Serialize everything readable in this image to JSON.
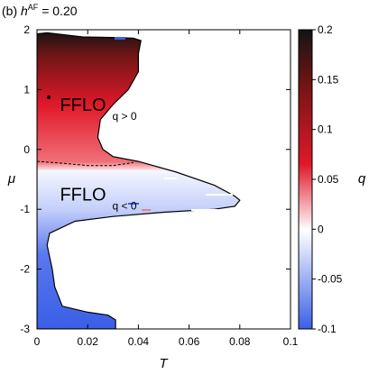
{
  "chart_data": {
    "type": "heatmap",
    "title_prefix": "(b) ",
    "title_var": "h",
    "title_sup": "AF",
    "title_suffix": " = 0.20",
    "xlabel": "T",
    "ylabel": "μ",
    "colorbar_label": "q",
    "xlim": [
      0,
      0.1
    ],
    "ylim": [
      -3,
      2
    ],
    "x_ticks": [
      "0",
      "0.02",
      "0.04",
      "0.06",
      "0.08",
      "0.1"
    ],
    "x_tick_values": [
      0,
      0.02,
      0.04,
      0.06,
      0.08,
      0.1
    ],
    "y_ticks": [
      "-3",
      "-2",
      "-1",
      "0",
      "1",
      "2"
    ],
    "y_tick_values": [
      -3,
      -2,
      -1,
      0,
      1,
      2
    ],
    "colorbar_range": [
      -0.1,
      0.2
    ],
    "colorbar_ticks": [
      "0.2",
      "0.15",
      "0.1",
      "0.05",
      "0",
      "-0.05",
      "-0.1"
    ],
    "colorbar_tick_values": [
      0.2,
      0.15,
      0.1,
      0.05,
      0,
      -0.05,
      -0.1
    ],
    "colors": {
      "low": "#3a5fe6",
      "mid": "#ffffff",
      "high": "#e0192a",
      "top": "#1a1a1a"
    },
    "regions": [
      {
        "label": "FFLO",
        "sub": "q > 0",
        "T": 0.008,
        "mu": 0.6
      },
      {
        "label": "FFLO",
        "sub": "q < 0",
        "T": 0.008,
        "mu": -0.9
      }
    ],
    "boundary": [
      [
        0.0,
        1.93
      ],
      [
        0.004,
        1.95
      ],
      [
        0.01,
        1.92
      ],
      [
        0.018,
        1.88
      ],
      [
        0.03,
        1.87
      ],
      [
        0.038,
        1.86
      ],
      [
        0.041,
        1.82
      ],
      [
        0.04,
        1.6
      ],
      [
        0.04,
        1.3
      ],
      [
        0.036,
        1.0
      ],
      [
        0.03,
        0.75
      ],
      [
        0.025,
        0.5
      ],
      [
        0.024,
        0.2
      ],
      [
        0.026,
        0.0
      ],
      [
        0.03,
        -0.12
      ],
      [
        0.04,
        -0.2
      ],
      [
        0.055,
        -0.38
      ],
      [
        0.07,
        -0.6
      ],
      [
        0.078,
        -0.78
      ],
      [
        0.08,
        -0.85
      ],
      [
        0.078,
        -0.95
      ],
      [
        0.07,
        -1.0
      ],
      [
        0.05,
        -1.05
      ],
      [
        0.03,
        -1.12
      ],
      [
        0.015,
        -1.2
      ],
      [
        0.005,
        -1.4
      ],
      [
        0.004,
        -1.6
      ],
      [
        0.006,
        -2.0
      ],
      [
        0.007,
        -2.3
      ],
      [
        0.01,
        -2.62
      ],
      [
        0.02,
        -2.72
      ],
      [
        0.028,
        -2.77
      ],
      [
        0.031,
        -2.85
      ],
      [
        0.031,
        -3.0
      ],
      [
        0.0,
        -3.0
      ]
    ],
    "q_zero_line": [
      [
        0.0,
        -0.2
      ],
      [
        0.01,
        -0.23
      ],
      [
        0.02,
        -0.27
      ],
      [
        0.03,
        -0.27
      ],
      [
        0.038,
        -0.22
      ]
    ]
  }
}
